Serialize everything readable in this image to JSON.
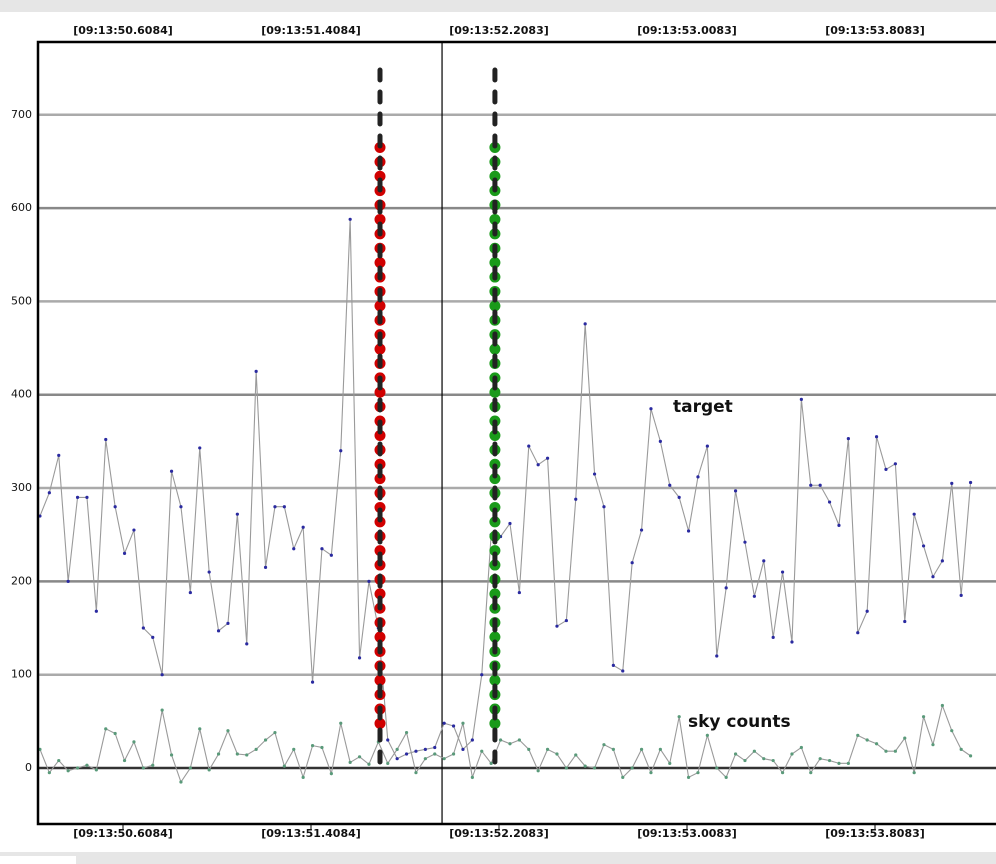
{
  "chart_data": {
    "type": "line",
    "annotations": [
      "target",
      "sky counts"
    ],
    "x": [
      50.255,
      50.295,
      50.335,
      50.375,
      50.415,
      50.455,
      50.495,
      50.535,
      50.575,
      50.615,
      50.655,
      50.695,
      50.735,
      50.775,
      50.815,
      50.855,
      50.895,
      50.935,
      50.975,
      51.015,
      51.055,
      51.095,
      51.135,
      51.175,
      51.215,
      51.255,
      51.295,
      51.335,
      51.375,
      51.415,
      51.455,
      51.495,
      51.535,
      51.575,
      51.615,
      51.655,
      51.695,
      51.735,
      51.775,
      51.815,
      51.855,
      51.895,
      51.935,
      51.975,
      52.015,
      52.055,
      52.095,
      52.135,
      52.175,
      52.215,
      52.255,
      52.295,
      52.335,
      52.375,
      52.415,
      52.455,
      52.495,
      52.535,
      52.575,
      52.615,
      52.655,
      52.695,
      52.735,
      52.775,
      52.815,
      52.855,
      52.895,
      52.935,
      52.975,
      53.015,
      53.055,
      53.095,
      53.135,
      53.175,
      53.215,
      53.255,
      53.295,
      53.335,
      53.375,
      53.415,
      53.455,
      53.495,
      53.535,
      53.575,
      53.615,
      53.655,
      53.695,
      53.735,
      53.775,
      53.815,
      53.855,
      53.895,
      53.935,
      53.975,
      54.015,
      54.055,
      54.095,
      54.135,
      54.175,
      54.215
    ],
    "series": [
      {
        "name": "target",
        "color": "#2a2aa0",
        "line_color": "#9a9a9a",
        "values": [
          270,
          295,
          335,
          200,
          290,
          290,
          168,
          352,
          280,
          230,
          255,
          150,
          140,
          100,
          318,
          280,
          188,
          343,
          210,
          147,
          155,
          272,
          133,
          425,
          215,
          280,
          280,
          235,
          258,
          92,
          235,
          228,
          340,
          588,
          118,
          200,
          150,
          30,
          10,
          15,
          18,
          20,
          22,
          48,
          45,
          20,
          30,
          100,
          250,
          248,
          262,
          188,
          345,
          325,
          332,
          152,
          158,
          288,
          476,
          315,
          280,
          110,
          104,
          220,
          255,
          385,
          350,
          303,
          290,
          254,
          312,
          345,
          120,
          193,
          297,
          242,
          184,
          222,
          140,
          210,
          135,
          395,
          303,
          303,
          285,
          260,
          353,
          145,
          168,
          355,
          320,
          326,
          157,
          272,
          238,
          205,
          222,
          305,
          185,
          306
        ]
      },
      {
        "name": "sky counts",
        "color": "#5a9a7a",
        "line_color": "#9a9a9a",
        "values": [
          20,
          -5,
          8,
          -3,
          0,
          3,
          -2,
          42,
          37,
          8,
          28,
          0,
          3,
          62,
          14,
          -15,
          0,
          42,
          -2,
          15,
          40,
          15,
          14,
          20,
          30,
          38,
          2,
          20,
          -10,
          24,
          22,
          -6,
          48,
          6,
          12,
          4,
          28,
          5,
          20,
          38,
          -5,
          10,
          15,
          10,
          15,
          48,
          -10,
          18,
          5,
          30,
          26,
          30,
          20,
          -3,
          20,
          15,
          0,
          14,
          2,
          0,
          25,
          20,
          -10,
          0,
          20,
          -5,
          20,
          5,
          55,
          -10,
          -5,
          35,
          0,
          -10,
          15,
          8,
          18,
          10,
          8,
          -5,
          15,
          22,
          -5,
          10,
          8,
          5,
          5,
          35,
          30,
          26,
          18,
          18,
          32,
          -5,
          55,
          25,
          67,
          40,
          20,
          13
        ]
      }
    ],
    "markers": [
      {
        "x": 51.702,
        "color": "#d00000",
        "dot_range": [
          35,
          665
        ],
        "dash_range": [
          -5,
          748
        ]
      },
      {
        "x": 52.191,
        "color": "#1a9a1a",
        "dot_range": [
          35,
          665
        ],
        "dash_range": [
          -5,
          748
        ]
      }
    ],
    "cursor_x": 51.966,
    "xlim": [
      50.2467,
      54.3232
    ],
    "xticks": [
      {
        "value": 50.6084,
        "label": "[09:13:50.6084]"
      },
      {
        "value": 51.4084,
        "label": "[09:13:51.4084]"
      },
      {
        "value": 52.2083,
        "label": "[09:13:52.2083]"
      },
      {
        "value": 53.0083,
        "label": "[09:13:53.0083]"
      },
      {
        "value": 53.8083,
        "label": "[09:13:53.8083]"
      }
    ],
    "ylim": [
      -60,
      778
    ],
    "yticks": [
      0,
      100,
      200,
      300,
      400,
      500,
      600,
      700
    ],
    "grid": true
  }
}
